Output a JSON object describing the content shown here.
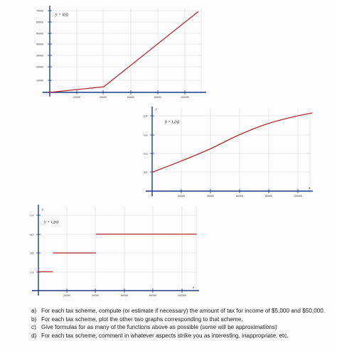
{
  "colors": {
    "curve": "#b42a2a",
    "axis": "#1f3a8a",
    "grid": "#d4d7de",
    "background": "#fdfdfd"
  },
  "graphs": {
    "g1": {
      "func_label": "y = t(x)",
      "x_ticks": [
        "20000",
        "40000",
        "60000",
        "80000",
        "100000"
      ],
      "y_ticks": [
        "70000",
        "60000",
        "50000",
        "40000",
        "30000",
        "20000",
        "10000"
      ]
    },
    "g2": {
      "func_label": "y = t₂(x)",
      "y_axis_name": "y",
      "x_axis_name": "x",
      "x_ticks": [
        "20000",
        "40000",
        "60000",
        "80000",
        "100000"
      ],
      "y_ticks": [
        "0.4",
        "0.3",
        "0.2",
        "0.1"
      ]
    },
    "g3": {
      "func_label": "y = t₃(x)",
      "y_axis_name": "y",
      "x_axis_name": "x",
      "x_ticks": [
        "20000",
        "40000",
        "60000",
        "80000",
        "100000"
      ],
      "y_ticks": [
        "0.4",
        "0.3",
        "0.2",
        "0.1"
      ]
    }
  },
  "questions": [
    {
      "marker": "a)",
      "text": "For each tax scheme, compute (or estimate if necessary) the amount of tax for income of $5,000 and $50,000."
    },
    {
      "marker": "b)",
      "text": "For each tax scheme, plot the other two graphs corresponding to that scheme."
    },
    {
      "marker": "c)",
      "text": "Give formulas for as many of the functions above as possible (some will be approximations)"
    },
    {
      "marker": "d)",
      "text": "For each tax scheme, comment in whatever aspects strike you as interesting, inappropriate, etc."
    }
  ],
  "chart_data": [
    {
      "type": "line",
      "title": "",
      "series": [
        {
          "name": "y = t(x)",
          "x": [
            0,
            40000,
            110000
          ],
          "y": [
            0,
            5000,
            72000
          ]
        }
      ],
      "xlim": [
        0,
        110000
      ],
      "ylim": [
        0,
        72000
      ],
      "grid": true
    },
    {
      "type": "line",
      "title": "",
      "series": [
        {
          "name": "y = t₂(x)",
          "x": [
            0,
            20000,
            40000,
            60000,
            80000,
            100000,
            110000
          ],
          "y": [
            0.1,
            0.16,
            0.225,
            0.3,
            0.36,
            0.4,
            0.415
          ]
        }
      ],
      "xlim": [
        0,
        110000
      ],
      "ylim": [
        0,
        0.45
      ],
      "grid": true
    },
    {
      "type": "line",
      "title": "",
      "series": [
        {
          "name": "y = t₃(x)",
          "x": [
            0,
            10000,
            10000,
            40000,
            40000,
            110000
          ],
          "y": [
            0.1,
            0.1,
            0.2,
            0.2,
            0.3,
            0.3
          ]
        }
      ],
      "xlim": [
        0,
        110000
      ],
      "ylim": [
        0,
        0.45
      ],
      "grid": true
    }
  ]
}
